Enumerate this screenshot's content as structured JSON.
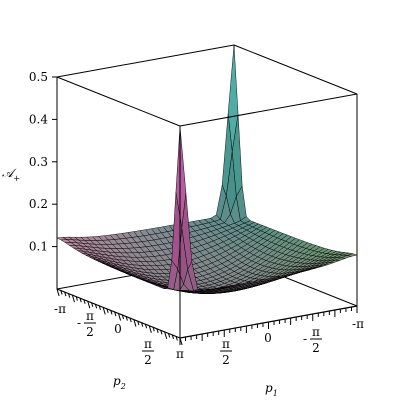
{
  "chart_data": {
    "type": "surface3d",
    "title": "",
    "xlabel": "p",
    "xlabel_sub": "1",
    "ylabel": "p",
    "ylabel_sub": "2",
    "zlabel": "𝒜",
    "zlabel_sub": "+",
    "zlim": [
      0.0,
      0.5
    ],
    "z_ticks": [
      "0.1",
      "0.2",
      "0.3",
      "0.4",
      "0.5"
    ],
    "x_ticks": [
      {
        "num": "",
        "den": "",
        "sign": "",
        "text": "-π"
      },
      {
        "num": "π",
        "den": "2",
        "sign": "-",
        "text": ""
      },
      {
        "num": "",
        "den": "",
        "sign": "",
        "text": "0"
      },
      {
        "num": "π",
        "den": "2",
        "sign": "",
        "text": ""
      },
      {
        "num": "",
        "den": "",
        "sign": "",
        "text": "π"
      }
    ],
    "p1_ticks_shown": [
      {
        "num": "",
        "den": "",
        "sign": "",
        "text": "-π"
      },
      {
        "num": "π",
        "den": "2",
        "sign": "-",
        "text": ""
      },
      {
        "num": "",
        "den": "",
        "sign": "",
        "text": "0"
      },
      {
        "num": "π",
        "den": "2",
        "sign": "",
        "text": ""
      },
      {
        "num": "",
        "den": "",
        "sign": "",
        "text": "π"
      }
    ],
    "xrange": [
      "-π",
      "π"
    ],
    "yrange": [
      "-π",
      "π"
    ],
    "surface": {
      "description_values": {
        "min_z": 0.02,
        "edge_z": 0.1,
        "peak_z": 0.5
      },
      "peaks_at": [
        [
          -3.14159,
          -3.14159
        ],
        [
          3.14159,
          3.14159
        ]
      ]
    },
    "grid": false,
    "box": true
  },
  "colors": {
    "peak_left": "#b0569a",
    "peak_right": "#4aa6a0",
    "center": "#c0c0c8",
    "edge_green": "#7ab870",
    "edge_pink": "#e8a0b8",
    "mesh_line": "#000000"
  }
}
